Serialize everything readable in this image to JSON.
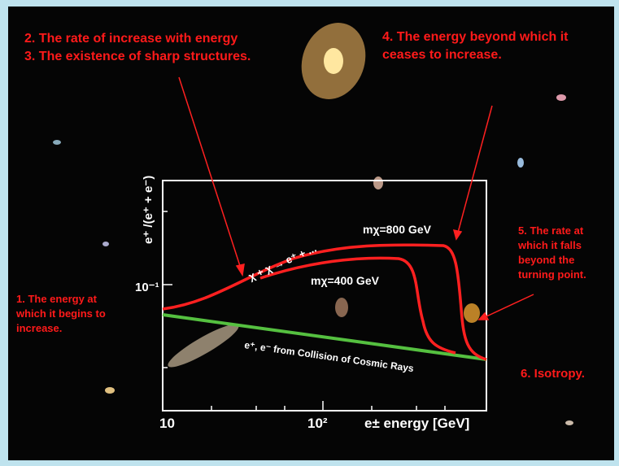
{
  "annotations": {
    "left": [
      "1. The energy at",
      "which it begins to",
      "increase."
    ],
    "top_left": [
      "2. The rate of increase with energy",
      "3. The existence of sharp structures."
    ],
    "top_right": [
      "4. The energy beyond which it",
      "ceases to increase."
    ],
    "right": [
      "5. The rate at",
      "which it falls",
      "beyond the",
      "turning point."
    ],
    "bottom_right": "6. Isotropy."
  },
  "plot": {
    "y_axis_label": "e⁺ /(e⁺ + e⁻)",
    "x_axis_label": "e± energy [GeV]",
    "x_tick_labels": [
      "10",
      "10²"
    ],
    "y_tick_labels": [
      "10⁻¹"
    ],
    "curve_labels": {
      "process": "χ + χ → e⁺ + ...",
      "m800": "mχ=800 GeV",
      "m400": "mχ=400 GeV",
      "background": "e⁺, e⁻ from Collision of Cosmic Rays"
    }
  }
}
